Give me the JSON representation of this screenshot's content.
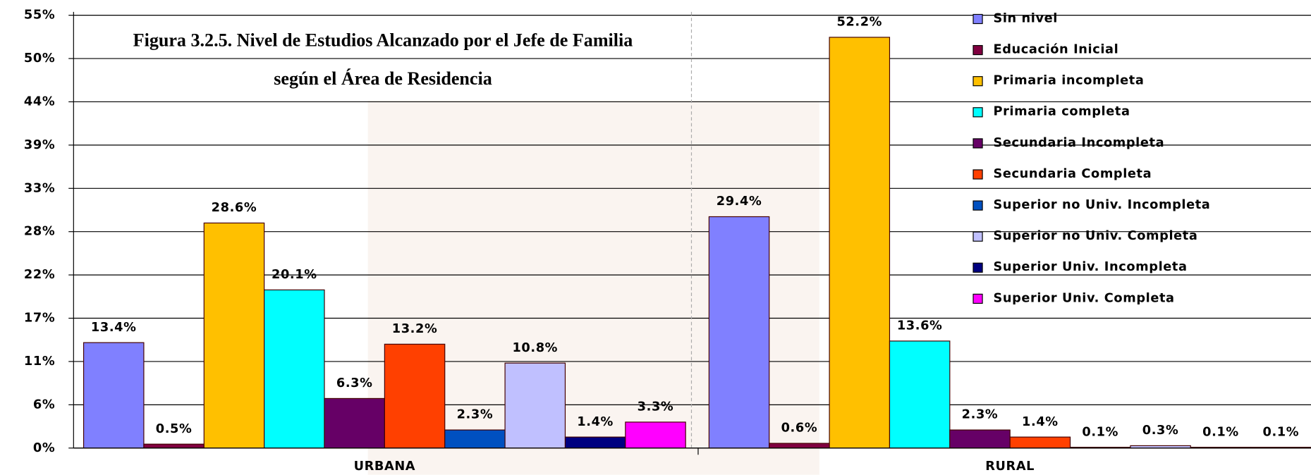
{
  "chart_data": {
    "type": "bar",
    "title": [
      "Figura 3.2.5. Nivel de Estudios Alcanzado por el Jefe de Familia",
      "según el Área de Residencia"
    ],
    "categories": [
      "URBANA",
      "RURAL"
    ],
    "series": [
      {
        "name": "Sin nivel",
        "color": "#8080ff",
        "values": [
          13.4,
          29.4
        ],
        "value_labels": [
          "13.4%",
          "29.4%"
        ]
      },
      {
        "name": "Educación Inicial",
        "color": "#800040",
        "values": [
          0.5,
          0.6
        ],
        "value_labels": [
          "0.5%",
          "0.6%"
        ]
      },
      {
        "name": "Primaria incompleta",
        "color": "#ffc000",
        "values": [
          28.6,
          52.2
        ],
        "value_labels": [
          "28.6%",
          "52.2%"
        ]
      },
      {
        "name": "Primaria completa",
        "color": "#00ffff",
        "values": [
          20.1,
          13.6
        ],
        "value_labels": [
          "20.1%",
          "13.6%"
        ]
      },
      {
        "name": "Secundaria Incompleta",
        "color": "#660066",
        "values": [
          6.3,
          2.3
        ],
        "value_labels": [
          "6.3%",
          "2.3%"
        ]
      },
      {
        "name": "Secundaria Completa",
        "color": "#ff4000",
        "values": [
          13.2,
          1.4
        ],
        "value_labels": [
          "13.2%",
          "1.4%"
        ]
      },
      {
        "name": "Superior no Univ. Incompleta",
        "color": "#0050c0",
        "values": [
          2.3,
          0.1
        ],
        "value_labels": [
          "2.3%",
          "0.1%"
        ]
      },
      {
        "name": "Superior no Univ. Completa",
        "color": "#c0c0ff",
        "values": [
          10.8,
          0.3
        ],
        "value_labels": [
          "10.8%",
          "0.3%"
        ]
      },
      {
        "name": "Superior Univ. Incompleta",
        "color": "#000080",
        "values": [
          1.4,
          0.1
        ],
        "value_labels": [
          "1.4%",
          "0.1%"
        ]
      },
      {
        "name": "Superior Univ. Completa",
        "color": "#ff00ff",
        "values": [
          3.3,
          0.1
        ],
        "value_labels": [
          "3.3%",
          "0.1%"
        ]
      }
    ],
    "ylim": [
      0,
      55
    ],
    "yticks": [
      {
        "value": 0,
        "label": "0%"
      },
      {
        "value": 5.5,
        "label": "6%"
      },
      {
        "value": 11,
        "label": "11%"
      },
      {
        "value": 16.5,
        "label": "17%"
      },
      {
        "value": 22,
        "label": "22%"
      },
      {
        "value": 27.5,
        "label": "28%"
      },
      {
        "value": 33,
        "label": "33%"
      },
      {
        "value": 38.5,
        "label": "39%"
      },
      {
        "value": 44,
        "label": "44%"
      },
      {
        "value": 49.5,
        "label": "50%"
      },
      {
        "value": 55,
        "label": "55%"
      }
    ],
    "grid": true
  }
}
